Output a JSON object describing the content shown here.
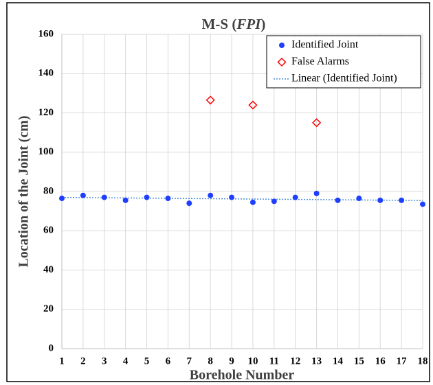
{
  "chart_data": {
    "type": "scatter",
    "title": [
      "M-S (",
      "FPI",
      ")"
    ],
    "xlabel": "Borehole Number",
    "ylabel": "Location of the Joint (cm)",
    "xlim": [
      1,
      18
    ],
    "ylim": [
      0,
      160
    ],
    "xticks": [
      1,
      2,
      3,
      4,
      5,
      6,
      7,
      8,
      9,
      10,
      11,
      12,
      13,
      14,
      15,
      16,
      17,
      18
    ],
    "yticks": [
      0,
      20,
      40,
      60,
      80,
      100,
      120,
      140,
      160
    ],
    "grid": true,
    "legend": "top-right",
    "series": [
      {
        "name": "Identified Joint",
        "color": "#1f3fff",
        "marker": "circle",
        "x": [
          1,
          2,
          3,
          4,
          5,
          6,
          7,
          8,
          9,
          10,
          11,
          12,
          13,
          14,
          15,
          16,
          17,
          18
        ],
        "values": [
          76.5,
          78,
          77,
          75.5,
          77,
          76.5,
          74,
          78,
          77,
          74.5,
          75,
          77,
          79,
          75.5,
          76.5,
          75.5,
          75.5,
          73.5
        ],
        "trendline": {
          "name": "Linear (Identified Joint)",
          "color": "#4a90d9"
        }
      },
      {
        "name": "False Alarms",
        "color": "#ff0000",
        "marker": "diamond",
        "x": [
          8,
          10,
          13
        ],
        "values": [
          126.5,
          124,
          115
        ]
      }
    ]
  }
}
